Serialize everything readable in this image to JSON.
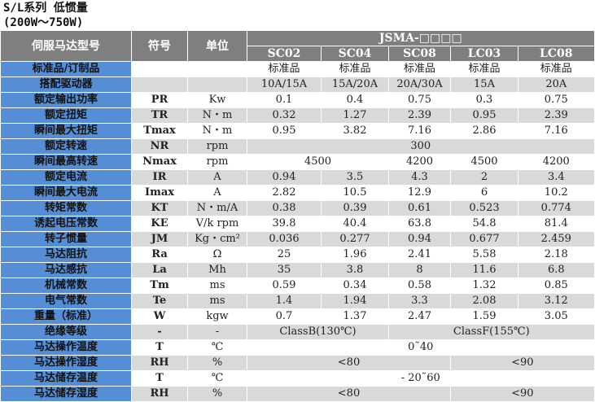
{
  "title": {
    "line1": "S/L系列  低惯量",
    "line2": "(200W～750W)"
  },
  "header": {
    "col_model": "伺服马达型号",
    "col_symbol": "符号",
    "col_unit": "单位",
    "series": "JSMA-□□□□",
    "models": [
      "SC02",
      "SC04",
      "SC08",
      "LC03",
      "LC08"
    ]
  },
  "rows": [
    {
      "label": "标准品/订制品",
      "symbol": "",
      "unit": "",
      "cells": [
        {
          "v": "标准品"
        },
        {
          "v": "标准品"
        },
        {
          "v": "标准品"
        },
        {
          "v": "标准品"
        },
        {
          "v": "标准品"
        }
      ]
    },
    {
      "label": "搭配驱动器",
      "symbol": "",
      "unit": "",
      "cells": [
        {
          "v": "10A/15A"
        },
        {
          "v": "15A/20A"
        },
        {
          "v": "20A/30A"
        },
        {
          "v": "15A"
        },
        {
          "v": "20A"
        }
      ]
    },
    {
      "label": "额定输出功率",
      "symbol": "PR",
      "unit": "Kw",
      "cells": [
        {
          "v": "0.1"
        },
        {
          "v": "0.4"
        },
        {
          "v": "0.75"
        },
        {
          "v": "0.3"
        },
        {
          "v": "0.75"
        }
      ]
    },
    {
      "label": "额定扭矩",
      "symbol": "TR",
      "unit": "N・m",
      "cells": [
        {
          "v": "0.32"
        },
        {
          "v": "1.27"
        },
        {
          "v": "2.39"
        },
        {
          "v": "0.95"
        },
        {
          "v": "2.39"
        }
      ]
    },
    {
      "label": "瞬间最大扭矩",
      "symbol": "Tmax",
      "unit": "N・m",
      "cells": [
        {
          "v": "0.95"
        },
        {
          "v": "3.82"
        },
        {
          "v": "7.16"
        },
        {
          "v": "2.86"
        },
        {
          "v": "7.16"
        }
      ]
    },
    {
      "label": "额定转速",
      "symbol": "NR",
      "unit": "rpm",
      "cells": [
        {
          "v": "300",
          "span": 5
        }
      ]
    },
    {
      "label": "瞬间最高转速",
      "symbol": "Nmax",
      "unit": "rpm",
      "cells": [
        {
          "v": "4500",
          "span": 2
        },
        {
          "v": "4200"
        },
        {
          "v": "4500"
        },
        {
          "v": "4200"
        }
      ]
    },
    {
      "label": "额定电流",
      "symbol": "IR",
      "unit": "A",
      "cells": [
        {
          "v": "0.94"
        },
        {
          "v": "3.5"
        },
        {
          "v": "4.3"
        },
        {
          "v": "2"
        },
        {
          "v": "3.4"
        }
      ]
    },
    {
      "label": "瞬间最大电流",
      "symbol": "Imax",
      "unit": "A",
      "cells": [
        {
          "v": "2.82"
        },
        {
          "v": "10.5"
        },
        {
          "v": "12.9"
        },
        {
          "v": "6"
        },
        {
          "v": "10.2"
        }
      ]
    },
    {
      "label": "转矩常数",
      "symbol": "KT",
      "unit": "N・m/A",
      "cells": [
        {
          "v": "0.38"
        },
        {
          "v": "0.39"
        },
        {
          "v": "0.61"
        },
        {
          "v": "0.523"
        },
        {
          "v": "0.774"
        }
      ]
    },
    {
      "label": "诱起电压常数",
      "symbol": "KE",
      "unit": "V/k rpm",
      "cells": [
        {
          "v": "39.8"
        },
        {
          "v": "40.4"
        },
        {
          "v": "63.8"
        },
        {
          "v": "54.8"
        },
        {
          "v": "81.4"
        }
      ]
    },
    {
      "label": "转子惯量",
      "symbol": "JM",
      "unit": "Kg・cm²",
      "cells": [
        {
          "v": "0.036"
        },
        {
          "v": "0.277"
        },
        {
          "v": "0.94"
        },
        {
          "v": "0.677"
        },
        {
          "v": "2.459"
        }
      ]
    },
    {
      "label": "马达阻抗",
      "symbol": "Ra",
      "unit": "Ω",
      "cells": [
        {
          "v": "25"
        },
        {
          "v": "1.96"
        },
        {
          "v": "2.41"
        },
        {
          "v": "5.58"
        },
        {
          "v": "2.18"
        }
      ]
    },
    {
      "label": "马达感抗",
      "symbol": "La",
      "unit": "Mh",
      "cells": [
        {
          "v": "35"
        },
        {
          "v": "3.8"
        },
        {
          "v": "8"
        },
        {
          "v": "11.6"
        },
        {
          "v": "6.8"
        }
      ]
    },
    {
      "label": "机械常数",
      "symbol": "Tm",
      "unit": "ms",
      "cells": [
        {
          "v": "0.59"
        },
        {
          "v": "0.34"
        },
        {
          "v": "0.58"
        },
        {
          "v": "1.32"
        },
        {
          "v": "0.85"
        }
      ]
    },
    {
      "label": "电气常数",
      "symbol": "Te",
      "unit": "ms",
      "cells": [
        {
          "v": "1.4"
        },
        {
          "v": "1.94"
        },
        {
          "v": "3.3"
        },
        {
          "v": "2.08"
        },
        {
          "v": "3.12"
        }
      ]
    },
    {
      "label": "重量（标准）",
      "symbol": "W",
      "unit": "kgw",
      "cells": [
        {
          "v": "0.7"
        },
        {
          "v": "1.37"
        },
        {
          "v": "2.47"
        },
        {
          "v": "1.59"
        },
        {
          "v": "3.05"
        }
      ]
    },
    {
      "label": "绝缘等级",
      "symbol": "-",
      "unit": "-",
      "cells": [
        {
          "v": "ClassB(130℃)",
          "span": 2
        },
        {
          "v": "ClassF(155℃)",
          "span": 3
        }
      ]
    },
    {
      "label": "马达操作温度",
      "symbol": "T",
      "unit": "℃",
      "cells": [
        {
          "v": "0˜40",
          "span": 5
        }
      ]
    },
    {
      "label": "马达操作湿度",
      "symbol": "RH",
      "unit": "%",
      "cells": [
        {
          "v": "<80",
          "span": 3
        },
        {
          "v": "<90",
          "span": 2
        }
      ]
    },
    {
      "label": "马达储存温度",
      "symbol": "T",
      "unit": "℃",
      "cells": [
        {
          "v": "- 20˜60",
          "span": 5
        }
      ]
    },
    {
      "label": "马达储存湿度",
      "symbol": "RH",
      "unit": "%",
      "cells": [
        {
          "v": "<80",
          "span": 3
        },
        {
          "v": "<90",
          "span": 2
        }
      ]
    }
  ],
  "colors": {
    "label_bg": "#558ed5",
    "header_bg": "#7f7f7f",
    "stripe": "#d9d9d9"
  }
}
